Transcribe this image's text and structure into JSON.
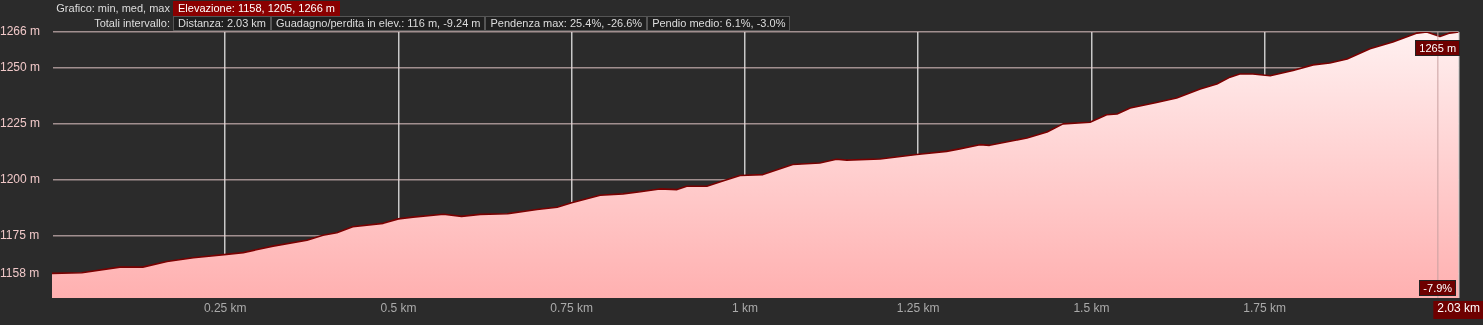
{
  "chart_data": {
    "type": "area",
    "annotations": [
      "Grafico: min, med, max",
      "Elevazione: 1158, 1205, 1266 m",
      "Totali intervallo:",
      "Distanza: 2.03 km",
      "Guadagno/perdita in elev.: 116 m, -9.24 m",
      "Pendenza max: 25.4%, -26.6%",
      "Pendio medio: 6.1%, -3.0%",
      {
        "text": "1265 m",
        "x": 2.0,
        "y": 1265
      },
      "-7.9%"
    ],
    "x": [
      0,
      0.043,
      0.098,
      0.131,
      0.166,
      0.204,
      0.252,
      0.276,
      0.319,
      0.368,
      0.391,
      0.411,
      0.434,
      0.478,
      0.5,
      0.521,
      0.565,
      0.591,
      0.618,
      0.657,
      0.7,
      0.729,
      0.75,
      0.791,
      0.824,
      0.849,
      0.877,
      0.902,
      0.916,
      0.945,
      0.968,
      0.993,
      1.026,
      1.069,
      1.108,
      1.132,
      1.147,
      1.195,
      1.248,
      1.291,
      1.31,
      1.339,
      1.353,
      1.407,
      1.436,
      1.459,
      1.498,
      1.522,
      1.537,
      1.556,
      1.594,
      1.623,
      1.657,
      1.681,
      1.7,
      1.714,
      1.733,
      1.758,
      1.791,
      1.82,
      1.844,
      1.869,
      1.902,
      1.935,
      1.97,
      1.984,
      2.003,
      2.017,
      2.03
    ],
    "series": [
      {
        "color": "#7a0000",
        "values": [
          1158,
          1158.3,
          1160.8,
          1160.8,
          1163.3,
          1165,
          1166.5,
          1167.3,
          1170.2,
          1172.8,
          1175.1,
          1176.2,
          1178.9,
          1180.4,
          1182.4,
          1183.2,
          1184.5,
          1183.5,
          1184.4,
          1184.7,
          1186.6,
          1187.6,
          1189.6,
          1193,
          1193.6,
          1194.5,
          1195.8,
          1195.5,
          1197,
          1197,
          1199.3,
          1201.8,
          1202.2,
          1206.7,
          1207.4,
          1209.1,
          1208.7,
          1209.2,
          1211.2,
          1212.6,
          1213.7,
          1215.6,
          1215.3,
          1218.6,
          1221.3,
          1224.9,
          1225.6,
          1229,
          1229.3,
          1232,
          1234.5,
          1236.5,
          1240.5,
          1242.7,
          1245.8,
          1247.2,
          1247.2,
          1246.4,
          1248.8,
          1251.3,
          1252.1,
          1253.9,
          1258.5,
          1261.5,
          1265.5,
          1266,
          1264,
          1265.5,
          1266
        ]
      }
    ],
    "xlim": [
      0,
      2.03
    ],
    "ylim": [
      1147,
      1266
    ],
    "xticks": [
      {
        "value": 0.25,
        "label": "0.25 km"
      },
      {
        "value": 0.5,
        "label": "0.5 km"
      },
      {
        "value": 0.75,
        "label": "0.75 km"
      },
      {
        "value": 1,
        "label": "1 km"
      },
      {
        "value": 1.25,
        "label": "1.25 km"
      },
      {
        "value": 1.5,
        "label": "1.5 km"
      },
      {
        "value": 1.75,
        "label": "1.75 km"
      },
      {
        "value": 2.03,
        "label": "2.03 km"
      }
    ],
    "yticks": [
      {
        "value": 1158,
        "label": "1158 m"
      },
      {
        "value": 1175,
        "label": "1175 m"
      },
      {
        "value": 1200,
        "label": "1200 m"
      },
      {
        "value": 1225,
        "label": "1225 m"
      },
      {
        "value": 1250,
        "label": "1250 m"
      },
      {
        "value": 1266,
        "label": "1266 m"
      }
    ],
    "ref_lines": [
      {
        "axis": "x",
        "value": 2.0,
        "color": "#c8a0a0"
      }
    ],
    "grid": true,
    "legend": false
  }
}
